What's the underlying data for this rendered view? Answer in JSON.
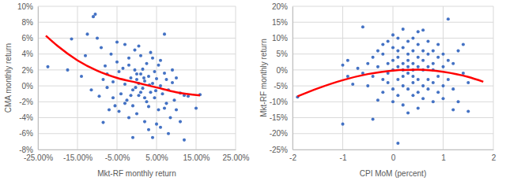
{
  "chart_data": [
    {
      "type": "scatter",
      "x_label": "Mkt-RF monthly return",
      "y_label": "CMA monthly return",
      "xlim": [
        -25,
        25
      ],
      "ylim": [
        -8,
        10
      ],
      "xticks": [
        {
          "value": -25,
          "label": "-25.00%"
        },
        {
          "value": -15,
          "label": "-15.00%"
        },
        {
          "value": -5,
          "label": "-5.00%"
        },
        {
          "value": 5,
          "label": "5.00%"
        },
        {
          "value": 15,
          "label": "15.00%"
        },
        {
          "value": 25,
          "label": "25.00%"
        }
      ],
      "yticks": [
        {
          "value": -8,
          "label": "-8%"
        },
        {
          "value": -6,
          "label": "-6%"
        },
        {
          "value": -4,
          "label": "-4%"
        },
        {
          "value": -2,
          "label": "-2%"
        },
        {
          "value": 0,
          "label": "0%"
        },
        {
          "value": 2,
          "label": "2%"
        },
        {
          "value": 4,
          "label": "4%"
        },
        {
          "value": 6,
          "label": "6%"
        },
        {
          "value": 8,
          "label": "8%"
        },
        {
          "value": 10,
          "label": "10%"
        }
      ],
      "grid": true,
      "series": [
        {
          "type": "scatter",
          "marker": "circle",
          "color": "#4472c4",
          "x": [
            -22.5,
            -17.5,
            -16.5,
            -11,
            -10.5,
            -12.5,
            -10,
            -9,
            -13,
            -14,
            -11.5,
            -9.5,
            -8.5,
            -7,
            -8,
            -7.5,
            -6.5,
            -6,
            -5.5,
            -5,
            -4.5,
            -4,
            -3.5,
            -3,
            -2.5,
            -2,
            -1.5,
            -1,
            -0.5,
            0,
            0.5,
            1,
            1.5,
            2,
            2.5,
            3,
            3.5,
            4,
            4.5,
            5,
            5.5,
            6,
            6.5,
            7,
            7.5,
            8,
            8.5,
            9,
            9.5,
            10,
            11,
            12,
            13,
            15,
            8,
            -1,
            3,
            7,
            1,
            4,
            -3,
            0,
            2,
            -2,
            5,
            11,
            -0.5,
            2.5,
            -1,
            3,
            7,
            0.5,
            1.5,
            -4.5,
            9,
            4,
            6,
            -6,
            -7.5,
            3.5,
            -2,
            1,
            0,
            2,
            4.5,
            5.5,
            -1.5,
            -3,
            7.5,
            10,
            12,
            -5,
            0.5,
            16,
            6,
            -8.5,
            3.2,
            -0.3,
            1.8,
            4.8
          ],
          "values": [
            2.4,
            2,
            5.9,
            8.7,
            9,
            6.5,
            6,
            4.8,
            3.8,
            1.2,
            -0.5,
            -1.3,
            -4.6,
            -3,
            2.5,
            1.5,
            4,
            0.5,
            -2.5,
            3,
            1.8,
            -1,
            2.2,
            0.2,
            -1.8,
            3.5,
            1,
            -0.5,
            2,
            0.8,
            -1.2,
            1.5,
            -0.3,
            0.6,
            -2,
            1.2,
            -0.8,
            0.3,
            -1.5,
            0.9,
            -3,
            0,
            -1,
            1.6,
            -2.2,
            -0.5,
            -4,
            0.4,
            -1.8,
            -3,
            -0.9,
            -1.2,
            -1.3,
            -2.8,
            -6,
            -6.5,
            -5.5,
            6.5,
            3.8,
            3.5,
            5.2,
            -3.5,
            -4.5,
            -4,
            -4.8,
            -4.5,
            4.5,
            2.8,
            -2.5,
            -2.6,
            -2.8,
            0.3,
            2.1,
            -3.2,
            2,
            -6.5,
            -5.2,
            -1.5,
            -0.2,
            4.2,
            2.6,
            -0.8,
            1.5,
            -1.5,
            1.8,
            2.6,
            -1.2,
            -2.2,
            0.8,
            1,
            -6.8,
            5.5,
            5,
            -1.1,
            3.2,
            0.8,
            0.1,
            -0.2,
            1,
            -0.6
          ]
        },
        {
          "type": "line",
          "line_style": "solid",
          "color": "#ff0000",
          "x": [
            -23,
            -20,
            -15,
            -10,
            -5,
            0,
            5,
            10,
            16
          ],
          "values": [
            6.3,
            5,
            3.2,
            1.9,
            1,
            0.4,
            -0.2,
            -0.8,
            -1.2
          ]
        }
      ]
    },
    {
      "type": "scatter",
      "x_label": "CPI MoM (percent)",
      "y_label": "Mkt-RF monthly return",
      "xlim": [
        -2,
        2
      ],
      "ylim": [
        -25,
        20
      ],
      "xticks": [
        -2,
        -1,
        0,
        1,
        2
      ],
      "yticks": [
        {
          "value": -25,
          "label": "-25%"
        },
        {
          "value": -20,
          "label": "-20%"
        },
        {
          "value": -15,
          "label": "-15%"
        },
        {
          "value": -10,
          "label": "-10%"
        },
        {
          "value": -5,
          "label": "-5%"
        },
        {
          "value": 0,
          "label": "0%"
        },
        {
          "value": 5,
          "label": "5%"
        },
        {
          "value": 10,
          "label": "10%"
        },
        {
          "value": 15,
          "label": "15%"
        },
        {
          "value": 20,
          "label": "20%"
        }
      ],
      "grid": true,
      "series": [
        {
          "type": "scatter",
          "marker": "circle",
          "color": "#4472c4",
          "x": [
            -1.9,
            -1,
            -1,
            -0.9,
            -0.9,
            -0.7,
            -0.6,
            -0.6,
            -0.5,
            -0.5,
            -0.4,
            -0.4,
            -0.4,
            -0.3,
            -0.3,
            -0.3,
            -0.2,
            -0.2,
            -0.2,
            -0.2,
            -0.1,
            -0.1,
            -0.1,
            -0.1,
            0,
            0,
            0,
            0,
            0,
            0,
            0.1,
            0.1,
            0.1,
            0.1,
            0.1,
            0.1,
            0.1,
            0.2,
            0.2,
            0.2,
            0.2,
            0.2,
            0.2,
            0.2,
            0.3,
            0.3,
            0.3,
            0.3,
            0.3,
            0.3,
            0.3,
            0.4,
            0.4,
            0.4,
            0.4,
            0.4,
            0.4,
            0.4,
            0.5,
            0.5,
            0.5,
            0.5,
            0.5,
            0.5,
            0.5,
            0.6,
            0.6,
            0.6,
            0.6,
            0.6,
            0.6,
            0.7,
            0.7,
            0.7,
            0.7,
            0.7,
            0.8,
            0.8,
            0.8,
            0.8,
            0.8,
            0.9,
            0.9,
            0.9,
            0.9,
            1,
            1,
            1,
            1,
            1.1,
            1.1,
            1.1,
            1.2,
            1.2,
            1.2,
            1.3,
            1.3,
            1.4,
            1.4,
            1.5,
            1.5,
            -0.8
          ],
          "values": [
            -8.5,
            -17,
            1.5,
            3,
            -2,
            0.5,
            13.5,
            -1,
            2,
            -5,
            -15.5,
            4,
            -2,
            -9.5,
            1,
            6,
            -3,
            5,
            8,
            -7,
            2,
            -4,
            9,
            -1,
            3,
            -6,
            7,
            0,
            -10,
            11,
            -23,
            1,
            4,
            -3,
            6,
            -8,
            10,
            12.8,
            2,
            -2,
            -5,
            7,
            0,
            -11,
            -13.5,
            3,
            -1,
            5,
            -6,
            9,
            1,
            2,
            -4,
            6,
            -8,
            10,
            0,
            -2,
            4,
            -3,
            8,
            -7,
            1,
            12,
            -12,
            12.5,
            0,
            -5,
            3,
            6,
            -9,
            -3,
            5,
            1,
            -6,
            9,
            2,
            -4,
            6,
            -10,
            0,
            -2,
            4,
            8,
            -7,
            1,
            -5,
            5,
            -9,
            16,
            -3,
            3,
            -12.5,
            2,
            -6,
            -10,
            6,
            8,
            -1,
            -13,
            -4,
            -4.5
          ]
        },
        {
          "type": "line",
          "line_style": "solid",
          "color": "#ff0000",
          "x": [
            -1.9,
            -1.5,
            -1,
            -0.5,
            0,
            0.5,
            1,
            1.5,
            1.8
          ],
          "values": [
            -8.3,
            -5.8,
            -3.2,
            -1.3,
            -0.2,
            0.1,
            -0.6,
            -2.2,
            -3.7
          ]
        }
      ]
    }
  ]
}
